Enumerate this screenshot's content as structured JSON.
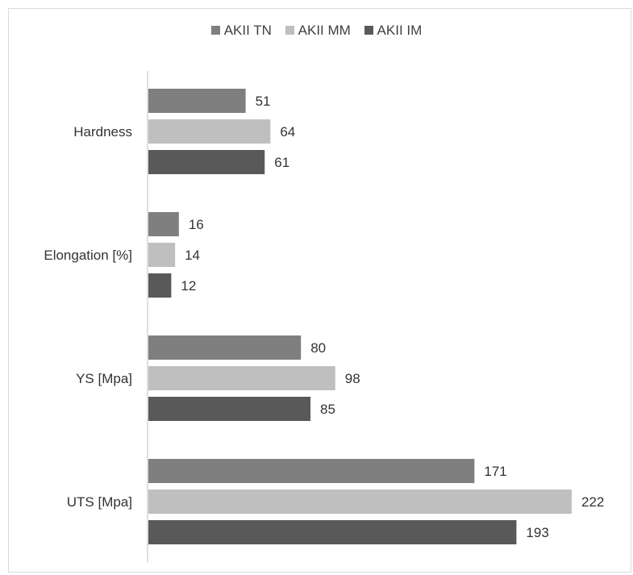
{
  "chart_data": {
    "type": "bar",
    "orientation": "horizontal",
    "title": "",
    "xlabel": "",
    "ylabel": "",
    "categories": [
      "Hardness",
      "Elongation [%]",
      "YS [Mpa]",
      "UTS [Mpa]"
    ],
    "series": [
      {
        "name": "AKII TN",
        "color": "#7f7f7f",
        "values": [
          51,
          16,
          80,
          171
        ]
      },
      {
        "name": "AKII MM",
        "color": "#bfbfbf",
        "values": [
          64,
          14,
          98,
          222
        ]
      },
      {
        "name": "AKII IM",
        "color": "#595959",
        "values": [
          61,
          12,
          85,
          193
        ]
      }
    ],
    "xlim": [
      0,
      222
    ],
    "legend_position": "top",
    "grid": false,
    "data_labels": true
  }
}
